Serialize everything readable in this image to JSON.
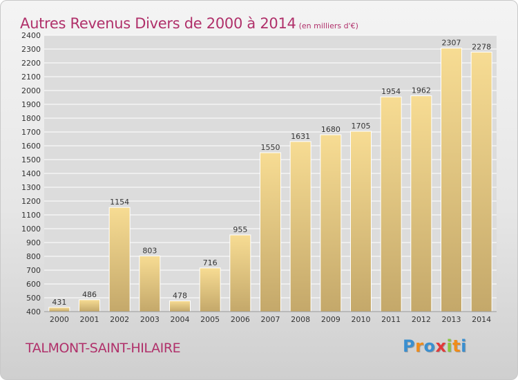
{
  "title": "Autres Revenus Divers de 2000 à 2014",
  "unit": "(en milliers d'€)",
  "location": "TALMONT-SAINT-HILAIRE",
  "logo": {
    "letters": [
      "P",
      "r",
      "o",
      "x",
      "i",
      "t",
      "i"
    ],
    "colors": [
      "#3a8fd0",
      "#f08c1a",
      "#3a8fd0",
      "#e23a3a",
      "#8cc63f",
      "#f08c1a",
      "#3a8fd0"
    ]
  },
  "colors": {
    "title": "#b0306a",
    "bar_light": "#f7dc93",
    "bar_dark": "#c4a86a",
    "grid": "#ffffff",
    "axis_text": "#333333"
  },
  "chart_data": {
    "type": "bar",
    "categories": [
      "2000",
      "2001",
      "2002",
      "2003",
      "2004",
      "2005",
      "2006",
      "2007",
      "2008",
      "2009",
      "2010",
      "2011",
      "2012",
      "2013",
      "2014"
    ],
    "values": [
      431,
      486,
      1154,
      803,
      478,
      716,
      955,
      1550,
      1631,
      1680,
      1705,
      1954,
      1962,
      2307,
      2278
    ],
    "ylim": [
      400,
      2400
    ],
    "ytick_step": 100,
    "grid": true,
    "data_labels": true
  }
}
